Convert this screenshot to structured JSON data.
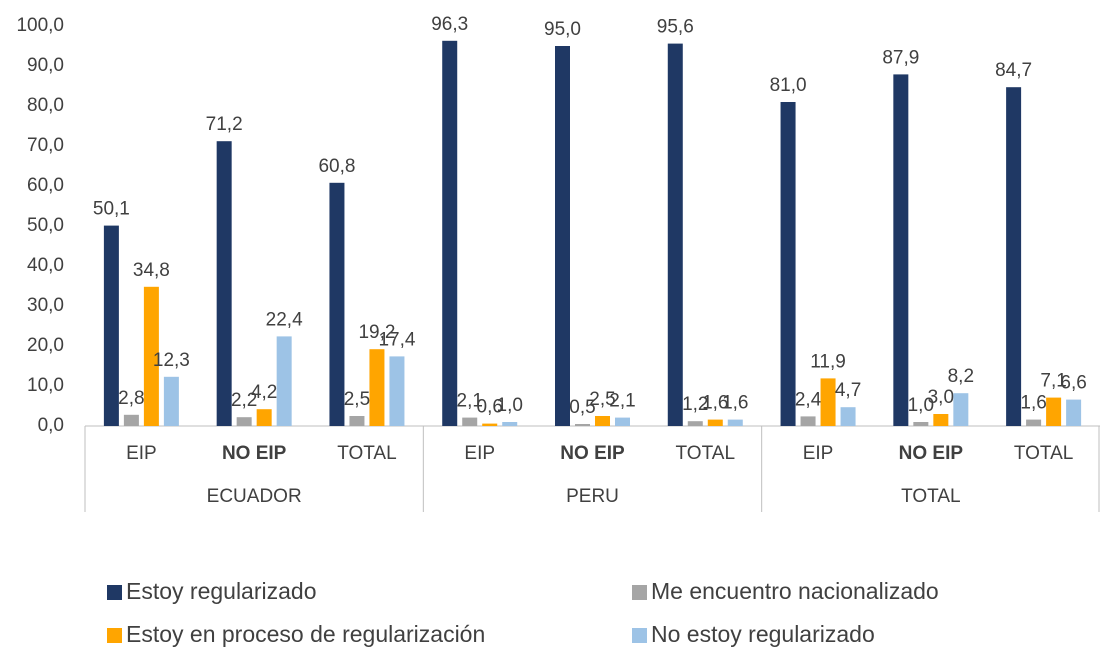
{
  "chart_data": {
    "type": "bar",
    "categories": [
      "EIP",
      "NO EIP",
      "TOTAL",
      "EIP",
      "NO EIP",
      "TOTAL",
      "EIP",
      "NO EIP",
      "TOTAL"
    ],
    "groups": [
      "ECUADOR",
      "PERU",
      "TOTAL"
    ],
    "ylim": [
      0,
      100
    ],
    "yticks": [
      {
        "value": 0,
        "label": "0,0"
      },
      {
        "value": 10,
        "label": "10,0"
      },
      {
        "value": 20,
        "label": "20,0"
      },
      {
        "value": 30,
        "label": "30,0"
      },
      {
        "value": 40,
        "label": "40,0"
      },
      {
        "value": 50,
        "label": "50,0"
      },
      {
        "value": 60,
        "label": "60,0"
      },
      {
        "value": 70,
        "label": "70,0"
      },
      {
        "value": 80,
        "label": "80,0"
      },
      {
        "value": 90,
        "label": "90,0"
      },
      {
        "value": 100,
        "label": "100,0"
      }
    ],
    "legend": "bottom",
    "series": [
      {
        "name": "Estoy regularizado",
        "color": "#1f3864",
        "values": [
          50.1,
          71.2,
          60.8,
          96.3,
          95.0,
          95.6,
          81.0,
          87.9,
          84.7
        ],
        "value_labels": [
          "50,1",
          "71,2",
          "60,8",
          "96,3",
          "95,0",
          "95,6",
          "81,0",
          "87,9",
          "84,7"
        ]
      },
      {
        "name": "Me encuentro nacionalizado",
        "color": "#a5a5a5",
        "values": [
          2.8,
          2.2,
          2.5,
          2.1,
          0.5,
          1.2,
          2.4,
          1.0,
          1.6
        ],
        "value_labels": [
          "2,8",
          "2,2",
          "2,5",
          "2,1",
          "0,5",
          "1,2",
          "2,4",
          "1,0",
          "1,6"
        ]
      },
      {
        "name": "Estoy en proceso de regularización",
        "color": "#ffa500",
        "values": [
          34.8,
          4.2,
          19.2,
          0.6,
          2.5,
          1.6,
          11.9,
          3.0,
          7.1
        ],
        "value_labels": [
          "34,8",
          "4,2",
          "19,2",
          "0,6",
          "2,5",
          "1,6",
          "11,9",
          "3,0",
          "7,1"
        ]
      },
      {
        "name": "No estoy regularizado",
        "color": "#9dc3e6",
        "values": [
          12.3,
          22.4,
          17.4,
          1.0,
          2.1,
          1.6,
          4.7,
          8.2,
          6.6
        ],
        "value_labels": [
          "12,3",
          "22,4",
          "17,4",
          "1,0",
          "2,1",
          "1,6",
          "4,7",
          "8,2",
          "6,6"
        ]
      }
    ]
  }
}
